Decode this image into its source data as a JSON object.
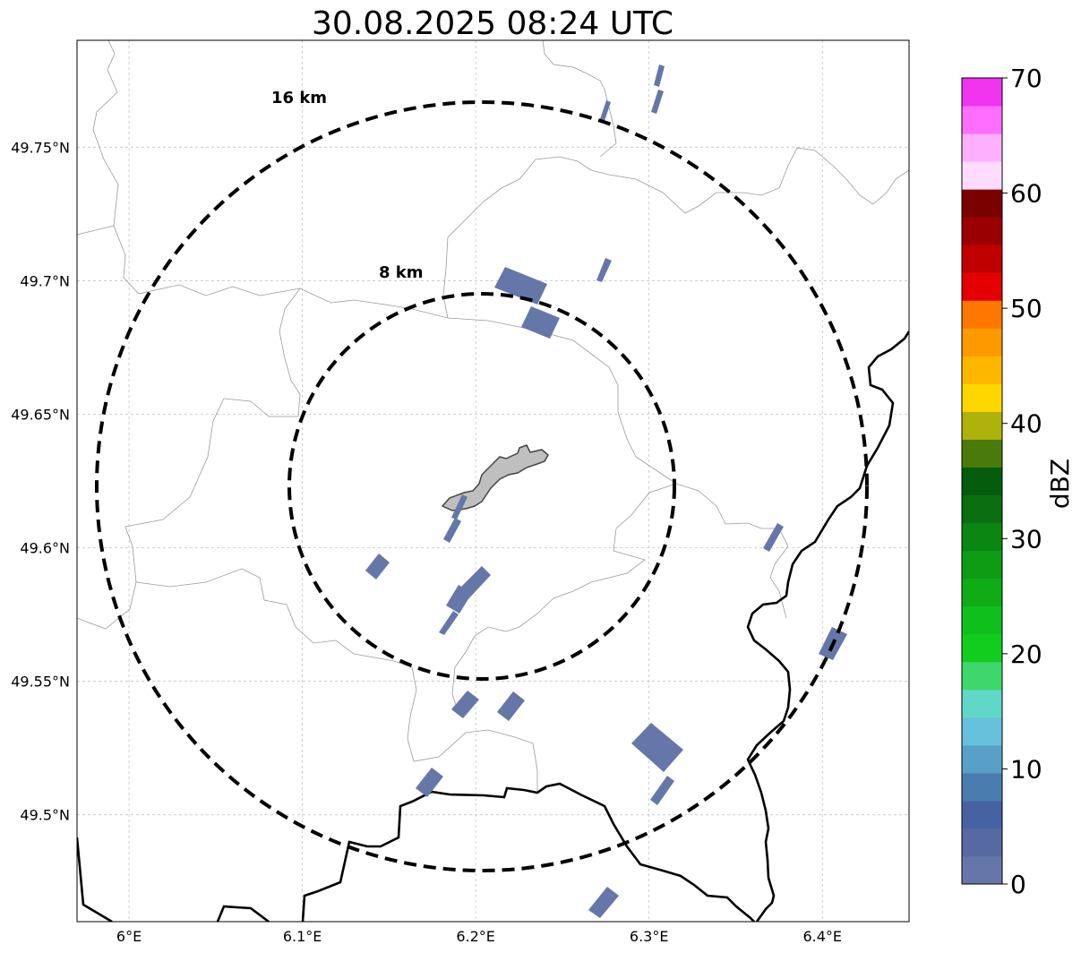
{
  "title": "30.08.2025 08:24 UTC",
  "map": {
    "lon_range": [
      5.97,
      6.45
    ],
    "lat_range": [
      49.46,
      49.79
    ],
    "lon_ticks": [
      {
        "value": 6.0,
        "label": "6°E"
      },
      {
        "value": 6.1,
        "label": "6.1°E"
      },
      {
        "value": 6.2,
        "label": "6.2°E"
      },
      {
        "value": 6.3,
        "label": "6.3°E"
      },
      {
        "value": 6.4,
        "label": "6.4°E"
      }
    ],
    "lat_ticks": [
      {
        "value": 49.5,
        "label": "49.5°N"
      },
      {
        "value": 49.55,
        "label": "49.55°N"
      },
      {
        "value": 49.6,
        "label": "49.6°N"
      },
      {
        "value": 49.65,
        "label": "49.65°N"
      },
      {
        "value": 49.7,
        "label": "49.7°N"
      },
      {
        "value": 49.75,
        "label": "49.75°N"
      }
    ],
    "grid": true,
    "rings": [
      {
        "label": "8 km",
        "radius_km": 8
      },
      {
        "label": "16 km",
        "radius_km": 16
      }
    ],
    "echo_color": "#6577a8"
  },
  "colorbar": {
    "label": "dBZ",
    "min": 0,
    "max": 70,
    "tick_labels": [
      "0",
      "10",
      "20",
      "30",
      "40",
      "50",
      "60",
      "70"
    ],
    "colors": [
      "#6577a8",
      "#566aa1",
      "#4762a2",
      "#4b7cb0",
      "#59a0c6",
      "#66c1dd",
      "#60d8c8",
      "#3ed76c",
      "#12cc1e",
      "#0fbf1b",
      "#0fac16",
      "#0e9c14",
      "#0a8612",
      "#086e0f",
      "#055c0c",
      "#4a7a0a",
      "#aeb20b",
      "#fed700",
      "#fdb700",
      "#fe9900",
      "#fe7800",
      "#e40000",
      "#c00000",
      "#9b0000",
      "#7b0000",
      "#ffdcff",
      "#feb0ff",
      "#ff6eff",
      "#f034f0"
    ]
  }
}
